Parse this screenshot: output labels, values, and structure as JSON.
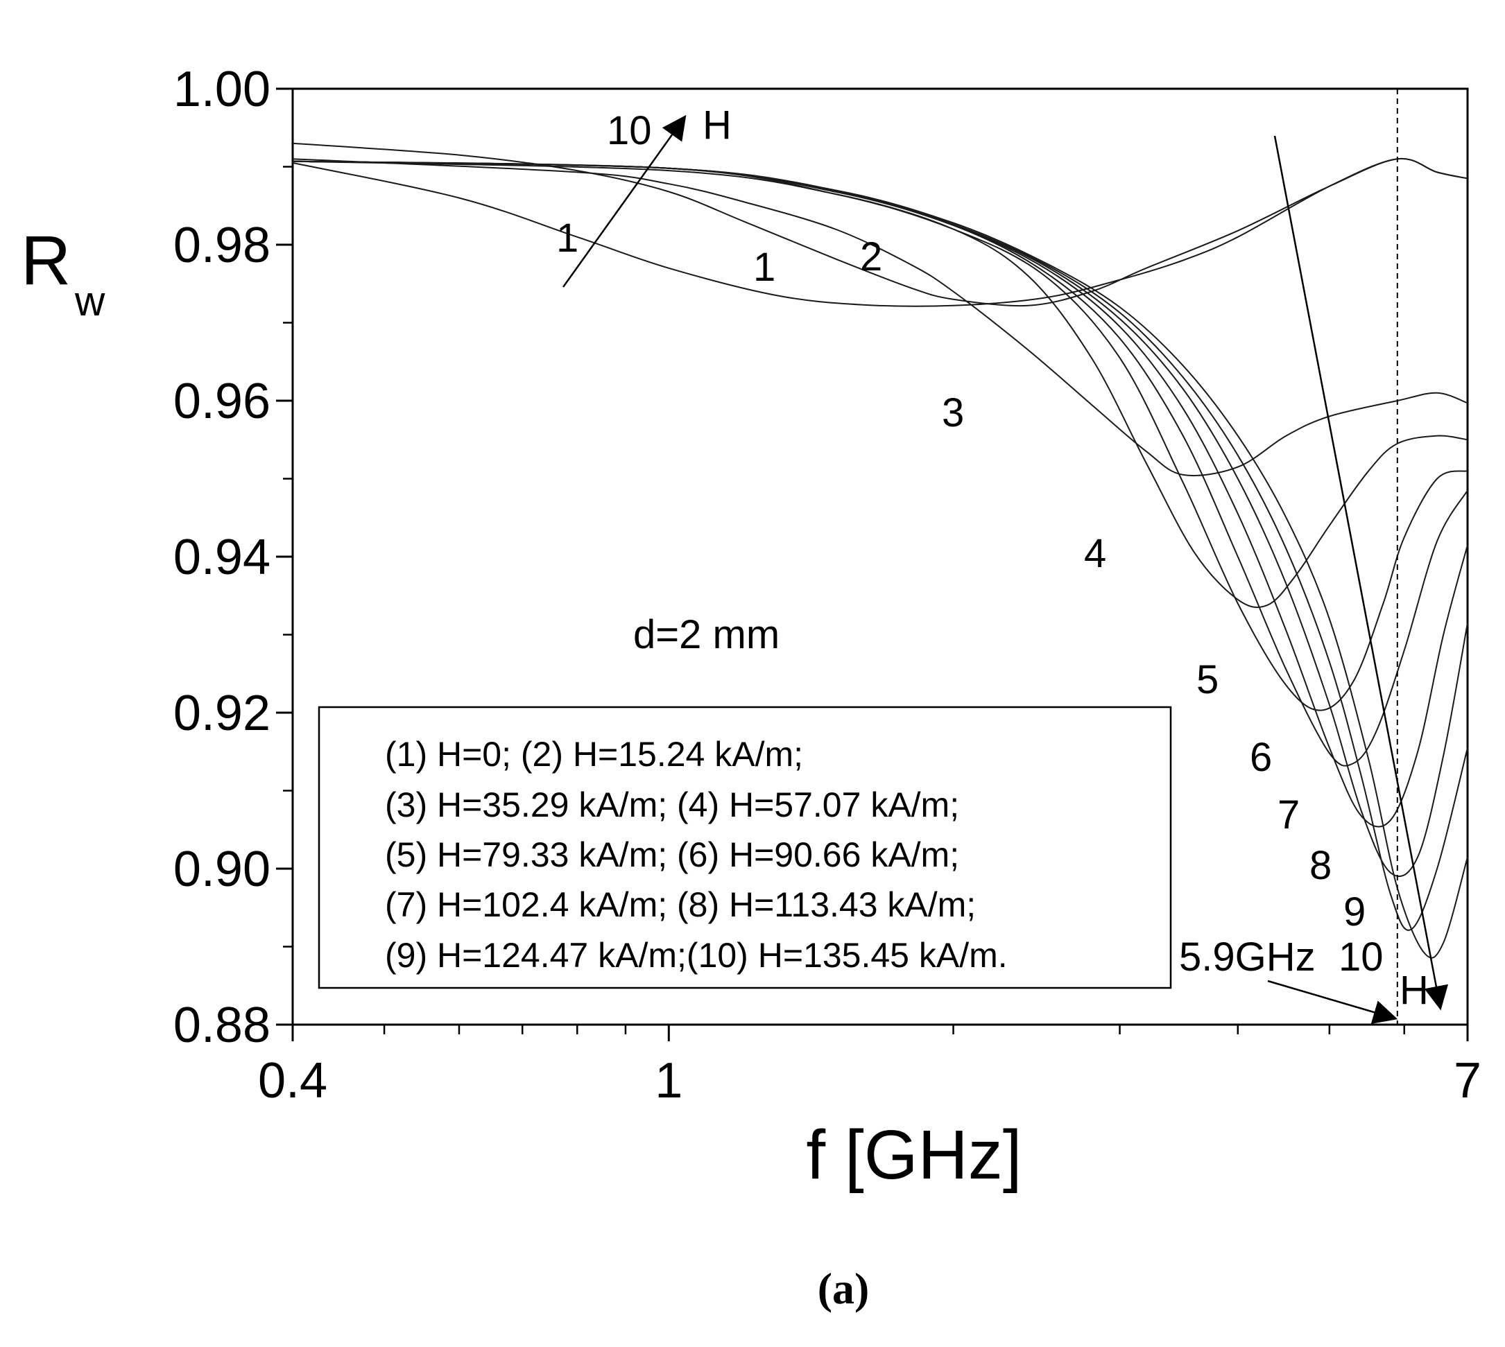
{
  "chart_data": {
    "type": "line",
    "ylabel_main": "R",
    "ylabel_sub": "w",
    "xlabel": "f [GHz]",
    "xscale": "log",
    "xlim": [
      0.4,
      7
    ],
    "ylim": [
      0.88,
      1.0
    ],
    "x_ticks": [
      {
        "value": 0.4,
        "label": "0.4"
      },
      {
        "value": 1,
        "label": "1"
      },
      {
        "value": 7,
        "label": "7"
      }
    ],
    "y_ticks": [
      {
        "value": 1.0,
        "label": "1.00"
      },
      {
        "value": 0.98,
        "label": "0.98"
      },
      {
        "value": 0.96,
        "label": "0.96"
      },
      {
        "value": 0.94,
        "label": "0.94"
      },
      {
        "value": 0.92,
        "label": "0.92"
      },
      {
        "value": 0.9,
        "label": "0.90"
      },
      {
        "value": 0.88,
        "label": "0.88"
      }
    ],
    "series": [
      {
        "name": "1",
        "x": [
          0.4,
          0.6,
          0.8,
          1.0,
          1.3,
          1.6,
          2.0,
          2.5,
          3.0,
          3.5,
          4.0,
          5.0,
          5.9,
          6.5,
          7.0
        ],
        "y": [
          0.9905,
          0.986,
          0.981,
          0.977,
          0.9735,
          0.9723,
          0.9722,
          0.9732,
          0.9755,
          0.978,
          0.981,
          0.9875,
          0.991,
          0.9893,
          0.9885
        ]
      },
      {
        "name": "2",
        "x": [
          0.4,
          0.6,
          0.8,
          1.0,
          1.2,
          1.5,
          1.8,
          2.0,
          2.4,
          2.8,
          3.2,
          4.0,
          5.0,
          5.9,
          6.5,
          7.0
        ],
        "y": [
          0.993,
          0.9915,
          0.9895,
          0.9868,
          0.983,
          0.9782,
          0.9745,
          0.973,
          0.9722,
          0.974,
          0.977,
          0.9818,
          0.9875,
          0.991,
          0.9893,
          0.9885
        ]
      },
      {
        "name": "3",
        "x": [
          0.4,
          0.8,
          1.0,
          1.2,
          1.5,
          1.8,
          2.0,
          2.4,
          2.8,
          3.2,
          3.5,
          4.0,
          4.5,
          5.0,
          5.9,
          6.5,
          7.0
        ],
        "y": [
          0.991,
          0.9893,
          0.9878,
          0.9855,
          0.982,
          0.9775,
          0.974,
          0.9665,
          0.9595,
          0.9535,
          0.9505,
          0.9515,
          0.9555,
          0.958,
          0.96,
          0.961,
          0.9597
        ]
      },
      {
        "name": "4",
        "x": [
          0.4,
          1.0,
          1.5,
          2.0,
          2.4,
          2.8,
          3.2,
          3.6,
          4.0,
          4.3,
          4.6,
          5.0,
          5.5,
          5.9,
          6.5,
          7.0
        ],
        "y": [
          0.9907,
          0.9895,
          0.9865,
          0.982,
          0.976,
          0.9655,
          0.952,
          0.9405,
          0.9345,
          0.9338,
          0.9375,
          0.944,
          0.951,
          0.9545,
          0.9555,
          0.955
        ]
      },
      {
        "name": "5",
        "x": [
          0.4,
          1.0,
          1.5,
          2.0,
          2.5,
          3.0,
          3.5,
          4.0,
          4.5,
          4.9,
          5.3,
          5.7,
          6.0,
          6.5,
          7.0
        ],
        "y": [
          0.9907,
          0.9898,
          0.9865,
          0.982,
          0.976,
          0.9655,
          0.9495,
          0.934,
          0.9235,
          0.9203,
          0.924,
          0.934,
          0.9425,
          0.95,
          0.951
        ]
      },
      {
        "name": "6",
        "x": [
          0.4,
          1.0,
          1.5,
          2.0,
          2.5,
          3.0,
          3.5,
          4.0,
          4.5,
          5.0,
          5.3,
          5.6,
          6.0,
          6.5,
          7.0
        ],
        "y": [
          0.9907,
          0.9898,
          0.9868,
          0.9825,
          0.9765,
          0.968,
          0.9555,
          0.94,
          0.9255,
          0.9148,
          0.9135,
          0.9175,
          0.928,
          0.942,
          0.9485
        ]
      },
      {
        "name": "7",
        "x": [
          0.4,
          1.0,
          1.5,
          2.0,
          2.5,
          3.0,
          3.5,
          4.0,
          4.5,
          5.0,
          5.4,
          5.8,
          6.2,
          6.6,
          7.0
        ],
        "y": [
          0.9907,
          0.9898,
          0.9868,
          0.9825,
          0.977,
          0.9695,
          0.959,
          0.9455,
          0.9305,
          0.9155,
          0.9068,
          0.9062,
          0.915,
          0.93,
          0.9415
        ]
      },
      {
        "name": "8",
        "x": [
          0.4,
          1.0,
          1.5,
          2.0,
          2.5,
          3.0,
          3.5,
          4.0,
          4.5,
          5.0,
          5.4,
          5.8,
          6.2,
          6.6,
          7.0
        ],
        "y": [
          0.9907,
          0.9898,
          0.9868,
          0.9826,
          0.9773,
          0.9705,
          0.9615,
          0.95,
          0.9365,
          0.921,
          0.9075,
          0.8995,
          0.9015,
          0.9145,
          0.9315
        ]
      },
      {
        "name": "9",
        "x": [
          0.4,
          1.0,
          1.5,
          2.0,
          2.5,
          3.0,
          3.5,
          4.0,
          4.5,
          5.0,
          5.4,
          5.8,
          6.1,
          6.5,
          7.0
        ],
        "y": [
          0.9907,
          0.9898,
          0.9869,
          0.9826,
          0.9775,
          0.9713,
          0.963,
          0.953,
          0.941,
          0.9265,
          0.912,
          0.8968,
          0.8922,
          0.9,
          0.9155
        ]
      },
      {
        "name": "10",
        "x": [
          0.4,
          1.0,
          1.5,
          2.0,
          2.5,
          3.0,
          3.5,
          4.0,
          4.5,
          5.0,
          5.5,
          5.9,
          6.3,
          6.6,
          7.0
        ],
        "y": [
          0.9907,
          0.9898,
          0.987,
          0.9828,
          0.9777,
          0.972,
          0.9645,
          0.9555,
          0.945,
          0.932,
          0.914,
          0.8975,
          0.8892,
          0.8905,
          0.9015
        ]
      }
    ],
    "dashed_line_x": 5.9,
    "legend": {
      "placement": "bottom-left",
      "lines": [
        "(1) H=0; (2) H=15.24 kA/m;",
        "(3) H=35.29 kA/m; (4) H=57.07 kA/m;",
        "(5) H=79.33 kA/m; (6) H=90.66 kA/m;",
        "(7) H=102.4 kA/m; (8) H=113.43 kA/m;",
        "(9) H=124.47 kA/m;(10) H=135.45 kA/m."
      ]
    },
    "annotations": {
      "thickness": "d=2 mm",
      "freq_marker": "5.9GHz",
      "arrow_label_top_number": "10",
      "arrow_label_top": "H",
      "arrow_label_bottom": "H",
      "curve_labels": [
        "1",
        "1",
        "2",
        "3",
        "4",
        "5",
        "6",
        "7",
        "8",
        "9",
        "10"
      ]
    },
    "grid": false
  },
  "caption": "(a)"
}
